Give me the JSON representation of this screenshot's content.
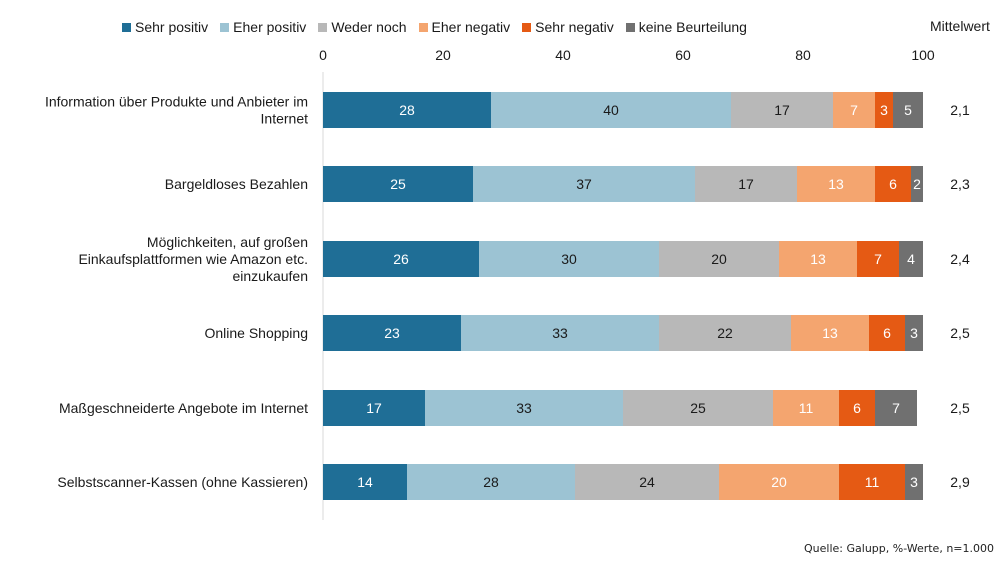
{
  "chart_data": {
    "type": "bar",
    "orientation": "horizontal",
    "stacked": true,
    "categories": [
      [
        "Information über Produkte und Anbieter im",
        "Internet"
      ],
      [
        "Bargeldloses Bezahlen"
      ],
      [
        "Möglichkeiten, auf großen",
        "Einkaufsplattformen wie Amazon etc.",
        "einzukaufen"
      ],
      [
        "Online Shopping"
      ],
      [
        "Maßgeschneiderte Angebote im Internet"
      ],
      [
        "Selbstscanner-Kassen (ohne Kassieren)"
      ]
    ],
    "series": [
      {
        "name": "Sehr positiv",
        "color": "#1f6e96",
        "label_color": "#ffffff",
        "values": [
          28,
          25,
          26,
          23,
          17,
          14
        ]
      },
      {
        "name": "Eher positiv",
        "color": "#9cc3d3",
        "label_color": "#1a1a1a",
        "values": [
          40,
          37,
          30,
          33,
          33,
          28
        ]
      },
      {
        "name": "Weder noch",
        "color": "#b8b8b8",
        "label_color": "#1a1a1a",
        "values": [
          17,
          17,
          20,
          22,
          25,
          24
        ]
      },
      {
        "name": "Eher negativ",
        "color": "#f4a56f",
        "label_color": "#ffffff",
        "values": [
          7,
          13,
          13,
          13,
          11,
          20
        ]
      },
      {
        "name": "Sehr negativ",
        "color": "#e55a14",
        "label_color": "#ffffff",
        "values": [
          3,
          6,
          7,
          6,
          6,
          11
        ]
      },
      {
        "name": "keine Beurteilung",
        "color": "#707070",
        "label_color": "#ffffff",
        "values": [
          5,
          2,
          4,
          3,
          7,
          3
        ]
      }
    ],
    "mean_header": "Mittelwert",
    "means": [
      "2,1",
      "2,3",
      "2,4",
      "2,5",
      "2,5",
      "2,9"
    ],
    "xlim": [
      0,
      100
    ],
    "xticks": [
      0,
      20,
      40,
      60,
      80,
      100
    ],
    "grid": false,
    "legend_position": "top",
    "source_note": "Quelle: Galupp, %-Werte, n=1.000"
  }
}
